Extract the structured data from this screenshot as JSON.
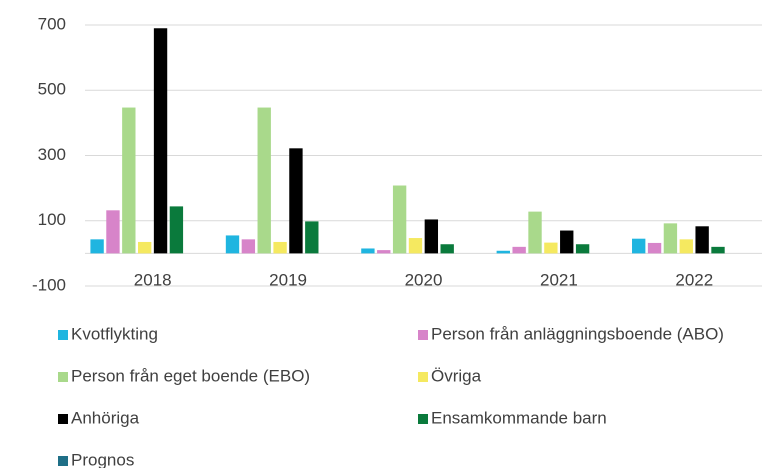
{
  "chart_data": {
    "type": "bar",
    "categories": [
      "2018",
      "2019",
      "2020",
      "2021",
      "2022"
    ],
    "series": [
      {
        "name": "Kvotflykting",
        "color": "#1fb5e0",
        "values": [
          43,
          55,
          15,
          8,
          45
        ]
      },
      {
        "name": "Person från anläggningsboende (ABO)",
        "color": "#d784c9",
        "values": [
          132,
          43,
          10,
          20,
          32
        ]
      },
      {
        "name": "Person från eget boende (EBO)",
        "color": "#a9d98b",
        "values": [
          447,
          447,
          208,
          128,
          92
        ]
      },
      {
        "name": "Övriga",
        "color": "#f5e960",
        "values": [
          35,
          35,
          47,
          33,
          43
        ]
      },
      {
        "name": "Anhöriga",
        "color": "#000000",
        "values": [
          690,
          322,
          104,
          70,
          83
        ]
      },
      {
        "name": "Ensamkommande barn",
        "color": "#0a7a3c",
        "values": [
          144,
          98,
          28,
          28,
          20
        ]
      },
      {
        "name": "Prognos",
        "color": "#1f6f87",
        "values": [
          null,
          null,
          null,
          null,
          null
        ]
      }
    ],
    "ylim": [
      -100,
      700
    ],
    "yticks": [
      -100,
      100,
      300,
      500,
      700
    ],
    "grid": true
  }
}
